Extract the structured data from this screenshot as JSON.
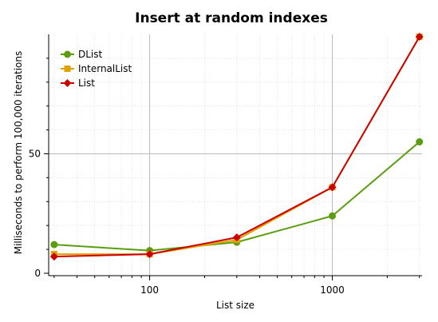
{
  "chart_data": {
    "type": "line",
    "title": "Insert at random indexes",
    "xlabel": "List size",
    "ylabel": "Milliseconds to perform 100,000 iterations",
    "x_scale": "log",
    "xlim": [
      28,
      3100
    ],
    "ylim": [
      -1,
      100
    ],
    "x_tick_labels": [
      {
        "value": 100,
        "label": "100"
      },
      {
        "value": 1000,
        "label": "1000"
      }
    ],
    "y_tick_labels": [
      {
        "value": 0,
        "label": "0"
      },
      {
        "value": 50,
        "label": "50"
      }
    ],
    "grid": true,
    "legend_position": "top-left",
    "series": [
      {
        "name": "DList",
        "color": "#5a9e10",
        "marker": "circle",
        "x": [
          30,
          100,
          300,
          1000,
          3000
        ],
        "y": [
          12,
          9.5,
          13,
          24,
          55
        ]
      },
      {
        "name": "InternalList",
        "color": "#e0a000",
        "marker": "square",
        "x": [
          30,
          100,
          300,
          1000,
          3000
        ],
        "y": [
          8,
          8,
          14,
          36,
          99
        ]
      },
      {
        "name": "List",
        "color": "#cc0000",
        "marker": "diamond",
        "x": [
          30,
          100,
          300,
          1000,
          3000
        ],
        "y": [
          7,
          8,
          15,
          36,
          99
        ]
      }
    ]
  }
}
